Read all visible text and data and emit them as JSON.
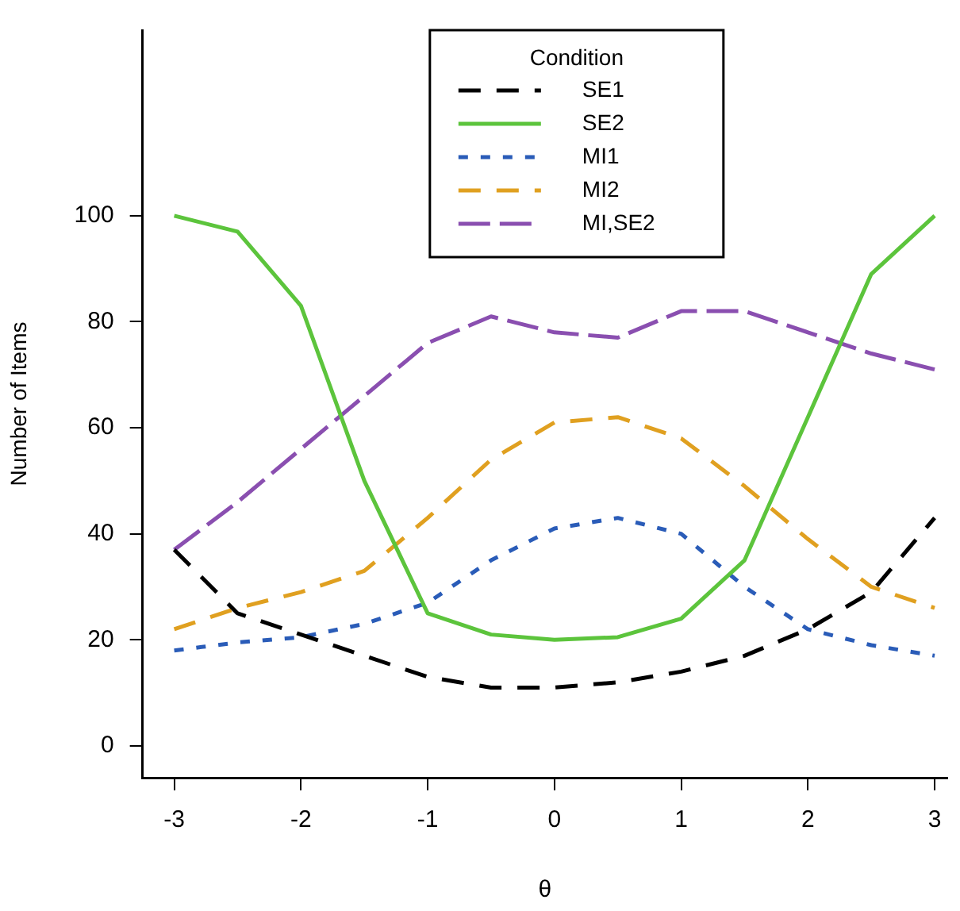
{
  "chart_data": {
    "type": "line",
    "xlabel": "θ",
    "ylabel": "Number of Items",
    "legend_title": "Condition",
    "legend": "top",
    "grid": false,
    "marker": "none",
    "x": [
      -3,
      -2.5,
      -2,
      -1.5,
      -1,
      -0.5,
      0,
      0.5,
      1,
      1.5,
      2,
      2.5,
      3
    ],
    "xlim": [
      -3.25,
      3.1
    ],
    "xticks": [
      -3,
      -2,
      -1,
      0,
      1,
      2,
      3
    ],
    "ylim": [
      -6,
      135
    ],
    "yticks": [
      0,
      20,
      40,
      60,
      80,
      100
    ],
    "series": [
      {
        "name": "SE1",
        "color": "#000000",
        "line_style": "dashed",
        "values": [
          37,
          25,
          21,
          17,
          13,
          11,
          11,
          12,
          14,
          17,
          22,
          29,
          43
        ]
      },
      {
        "name": "SE2",
        "color": "#5cc43c",
        "line_style": "solid",
        "values": [
          100,
          97,
          83,
          50,
          25,
          21,
          20,
          20.5,
          24,
          35,
          62,
          89,
          100
        ]
      },
      {
        "name": "MI1",
        "color": "#2a5cb8",
        "line_style": "dotted",
        "values": [
          18,
          19.5,
          20.5,
          23,
          27,
          35,
          41,
          43,
          40,
          30,
          22,
          19,
          17
        ]
      },
      {
        "name": "MI2",
        "color": "#e0a020",
        "line_style": "dashed",
        "values": [
          22,
          26,
          29,
          33,
          43,
          54,
          61,
          62,
          58,
          49,
          39,
          30,
          26
        ]
      },
      {
        "name": "MI,SE2",
        "color": "#8a4fb0",
        "line_style": "longdash",
        "values": [
          37,
          46,
          56,
          66,
          76,
          81,
          78,
          77,
          82,
          82,
          78,
          74,
          71
        ]
      }
    ]
  }
}
